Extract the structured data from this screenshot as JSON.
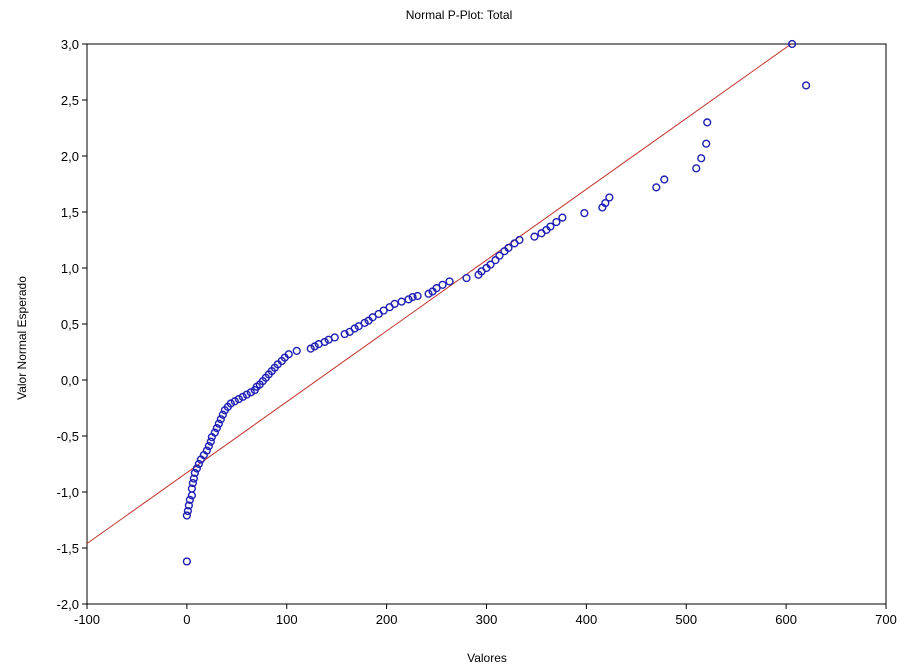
{
  "chart_data": {
    "type": "scatter",
    "title": "Normal P-Plot: Total",
    "xlabel": "Valores",
    "ylabel": "Valor Normal Esperado",
    "xlim": [
      -100,
      700
    ],
    "ylim": [
      -2.0,
      3.0
    ],
    "xticks": [
      -100,
      0,
      100,
      200,
      300,
      400,
      500,
      600,
      700
    ],
    "xtick_labels": [
      "-100",
      "0",
      "100",
      "200",
      "300",
      "400",
      "500",
      "600",
      "700"
    ],
    "yticks": [
      -2.0,
      -1.5,
      -1.0,
      -0.5,
      0.0,
      0.5,
      1.0,
      1.5,
      2.0,
      2.5,
      3.0
    ],
    "ytick_labels": [
      "-2,0",
      "-1,5",
      "-1,0",
      "-0,5",
      "0,0",
      "0,5",
      "1,0",
      "1,5",
      "2,0",
      "2,5",
      "3,0"
    ],
    "grid": false,
    "colors": {
      "points": "#1f1fb4",
      "reference_line": "#c0302a",
      "axes": "#000000"
    },
    "reference_line": {
      "x": [
        -100,
        605
      ],
      "y": [
        -1.46,
        3.0
      ]
    },
    "points": {
      "x": [
        0,
        0,
        1,
        2,
        3,
        5,
        5,
        6,
        7,
        8,
        10,
        12,
        14,
        17,
        20,
        22,
        24,
        25,
        28,
        30,
        32,
        34,
        36,
        38,
        41,
        44,
        48,
        52,
        56,
        60,
        64,
        68,
        70,
        73,
        76,
        79,
        82,
        85,
        88,
        91,
        95,
        98,
        102,
        110,
        124,
        128,
        132,
        138,
        142,
        148,
        158,
        163,
        168,
        172,
        178,
        182,
        186,
        192,
        197,
        203,
        208,
        215,
        222,
        226,
        231,
        242,
        246,
        250,
        256,
        263,
        280,
        292,
        295,
        300,
        304,
        309,
        313,
        318,
        322,
        328,
        333,
        348,
        355,
        360,
        364,
        370,
        376,
        398,
        416,
        419,
        423,
        470,
        478,
        510,
        515,
        520,
        521,
        620,
        606
      ],
      "y": [
        -1.62,
        -1.21,
        -1.17,
        -1.12,
        -1.07,
        -1.03,
        -0.97,
        -0.92,
        -0.88,
        -0.83,
        -0.79,
        -0.75,
        -0.71,
        -0.67,
        -0.63,
        -0.59,
        -0.55,
        -0.51,
        -0.47,
        -0.43,
        -0.39,
        -0.35,
        -0.31,
        -0.27,
        -0.24,
        -0.21,
        -0.19,
        -0.17,
        -0.15,
        -0.13,
        -0.11,
        -0.09,
        -0.06,
        -0.04,
        -0.01,
        0.02,
        0.05,
        0.08,
        0.11,
        0.14,
        0.17,
        0.2,
        0.23,
        0.26,
        0.28,
        0.3,
        0.32,
        0.34,
        0.36,
        0.38,
        0.41,
        0.43,
        0.46,
        0.48,
        0.51,
        0.53,
        0.56,
        0.59,
        0.62,
        0.65,
        0.68,
        0.7,
        0.72,
        0.74,
        0.75,
        0.77,
        0.79,
        0.82,
        0.85,
        0.88,
        0.91,
        0.94,
        0.97,
        1.0,
        1.03,
        1.07,
        1.11,
        1.15,
        1.18,
        1.22,
        1.25,
        1.28,
        1.31,
        1.34,
        1.37,
        1.41,
        1.45,
        1.49,
        1.54,
        1.58,
        1.63,
        1.72,
        1.79,
        1.89,
        1.98,
        2.11,
        2.3,
        2.63,
        3.0
      ]
    }
  }
}
